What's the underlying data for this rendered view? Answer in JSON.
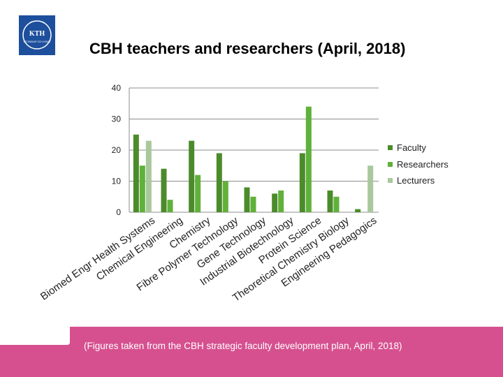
{
  "logo": {
    "text_top": "KTH",
    "text_bottom": "VETENSKAP OCH KONST"
  },
  "slide": {
    "title": "CBH teachers and researchers (April, 2018)",
    "footer_note": "(Figures taken from the CBH strategic faculty development plan, April, 2018)"
  },
  "colors": {
    "faculty": "#4c8b2b",
    "researchers": "#5fb13a",
    "lecturers": "#a9c89b",
    "footer": "#d6508f",
    "grid": "#8c8c8c"
  },
  "chart_data": {
    "type": "bar",
    "title": "CBH teachers and researchers (April, 2018)",
    "categories": [
      "Biomed Engr Health Systems",
      "Chemical Engineering",
      "Chemistry",
      "Fibre Polymer Technology",
      "Gene Technology",
      "Industrial Biotechnology",
      "Protein Science",
      "Theoretical Chemistry Biology",
      "Engineering Pedagogics"
    ],
    "series": [
      {
        "name": "Faculty",
        "values": [
          25,
          14,
          23,
          19,
          8,
          6,
          19,
          7,
          1
        ]
      },
      {
        "name": "Researchers",
        "values": [
          15,
          4,
          12,
          10,
          5,
          7,
          34,
          5,
          0
        ]
      },
      {
        "name": "Lecturers",
        "values": [
          23,
          0,
          0,
          0,
          0,
          0,
          0,
          0,
          15
        ]
      }
    ],
    "ylim": [
      0,
      40
    ],
    "yticks": [
      0,
      10,
      20,
      30,
      40
    ],
    "grid": true,
    "legend_position": "right"
  }
}
